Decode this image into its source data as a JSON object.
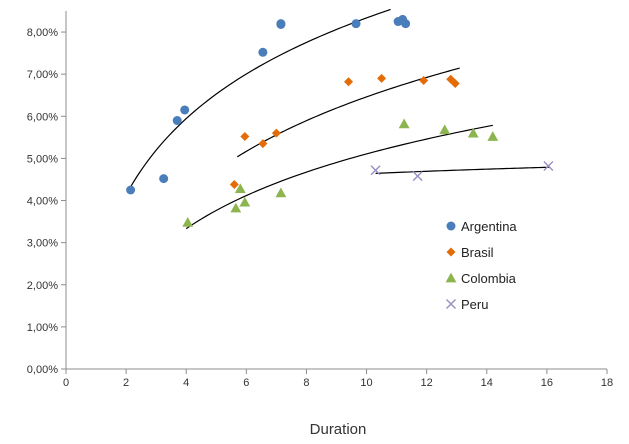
{
  "chart_data": {
    "type": "scatter",
    "xlabel": "Duration",
    "ylabel": "",
    "xlim": [
      0,
      18
    ],
    "ylim": [
      0,
      8.5
    ],
    "x_ticks": [
      0,
      2,
      4,
      6,
      8,
      10,
      12,
      14,
      16,
      18
    ],
    "x_tick_labels": [
      "0",
      "2",
      "4",
      "6",
      "8",
      "10",
      "12",
      "14",
      "16",
      "18"
    ],
    "y_ticks": [
      0,
      1,
      2,
      3,
      4,
      5,
      6,
      7,
      8
    ],
    "y_tick_labels": [
      "0,00%",
      "1,00%",
      "2,00%",
      "3,00%",
      "4,00%",
      "5,00%",
      "6,00%",
      "7,00%",
      "8,00%"
    ],
    "grid": false,
    "legend_position": "right",
    "series": [
      {
        "name": "Argentina",
        "marker": "circle",
        "color": "#4a7ebb",
        "points": [
          [
            2.15,
            4.25
          ],
          [
            3.25,
            4.52
          ],
          [
            3.7,
            5.9
          ],
          [
            3.95,
            6.15
          ],
          [
            6.55,
            7.52
          ],
          [
            7.15,
            8.2
          ],
          [
            7.15,
            8.18
          ],
          [
            9.65,
            8.2
          ],
          [
            11.05,
            8.25
          ],
          [
            11.2,
            8.3
          ],
          [
            11.3,
            8.2
          ]
        ],
        "trend_x": [
          2.1,
          10.8
        ]
      },
      {
        "name": "Brasil",
        "marker": "diamond",
        "color": "#e36c09",
        "points": [
          [
            5.6,
            4.38
          ],
          [
            5.95,
            5.52
          ],
          [
            6.55,
            5.35
          ],
          [
            7.0,
            5.6
          ],
          [
            9.4,
            6.82
          ],
          [
            10.5,
            6.9
          ],
          [
            11.9,
            6.85
          ],
          [
            12.8,
            6.88
          ],
          [
            12.95,
            6.78
          ]
        ],
        "trend_x": [
          5.7,
          13.1
        ]
      },
      {
        "name": "Colombia",
        "marker": "triangle",
        "color": "#8db54f",
        "points": [
          [
            4.05,
            3.48
          ],
          [
            5.65,
            3.82
          ],
          [
            5.8,
            4.28
          ],
          [
            5.95,
            3.96
          ],
          [
            7.15,
            4.18
          ],
          [
            11.25,
            5.82
          ],
          [
            12.6,
            5.68
          ],
          [
            13.55,
            5.6
          ],
          [
            14.2,
            5.52
          ]
        ],
        "trend_x": [
          4.0,
          14.2
        ]
      },
      {
        "name": "Peru",
        "marker": "x",
        "color": "#9b8ec4",
        "points": [
          [
            10.3,
            4.72
          ],
          [
            11.7,
            4.58
          ],
          [
            16.05,
            4.82
          ]
        ],
        "trend_x": [
          10.3,
          16.1
        ]
      }
    ]
  }
}
